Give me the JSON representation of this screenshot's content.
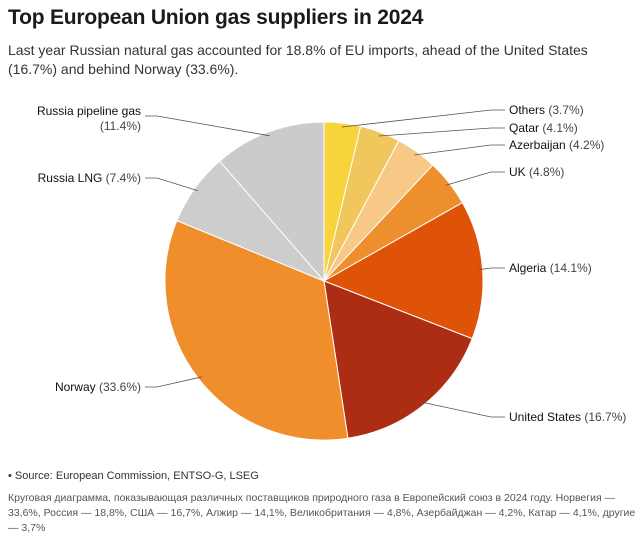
{
  "title": "Top European Union gas suppliers in 2024",
  "subtitle": "Last year Russian natural gas accounted for 18.8% of EU imports, ahead of the United States (16.7%) and behind Norway (33.6%).",
  "source": "• Source: European Commission, ENTSO-G, LSEG",
  "caption": "Круговая диаграмма, показывающая различных поставщиков природного газа в Европейский союз в 2024 году. Норвегия — 33,6%, Россия — 18,8%, США — 16,7%, Алжир — 14,1%, Великобритания — 4,8%, Азербайджан — 4,2%, Катар — 4,1%, другие — 3,7%",
  "chart_data": {
    "type": "pie",
    "title": "Top European Union gas suppliers in 2024",
    "slices": [
      {
        "name": "Others",
        "label": "(3.7%)",
        "value": 3.7,
        "color": "#f7d43c"
      },
      {
        "name": "Qatar",
        "label": "(4.1%)",
        "value": 4.1,
        "color": "#f1c65c"
      },
      {
        "name": "Azerbaijan",
        "label": "(4.2%)",
        "value": 4.2,
        "color": "#f8c886"
      },
      {
        "name": "UK",
        "label": "(4.8%)",
        "value": 4.8,
        "color": "#ee8f2e"
      },
      {
        "name": "Algeria",
        "label": "(14.1%)",
        "value": 14.1,
        "color": "#de5307"
      },
      {
        "name": "United States",
        "label": "(16.7%)",
        "value": 16.7,
        "color": "#ad2c14"
      },
      {
        "name": "Norway",
        "label": "(33.6%)",
        "value": 33.6,
        "color": "#ef8e2a"
      },
      {
        "name": "Russia LNG",
        "label": "(7.4%)",
        "value": 7.4,
        "color": "#cdcdcd"
      },
      {
        "name": "Russia pipeline gas",
        "label": "(11.4%)",
        "value": 11.4,
        "color": "#cbcbcb"
      }
    ],
    "start_angle": "12 o'clock",
    "direction": "clockwise"
  }
}
